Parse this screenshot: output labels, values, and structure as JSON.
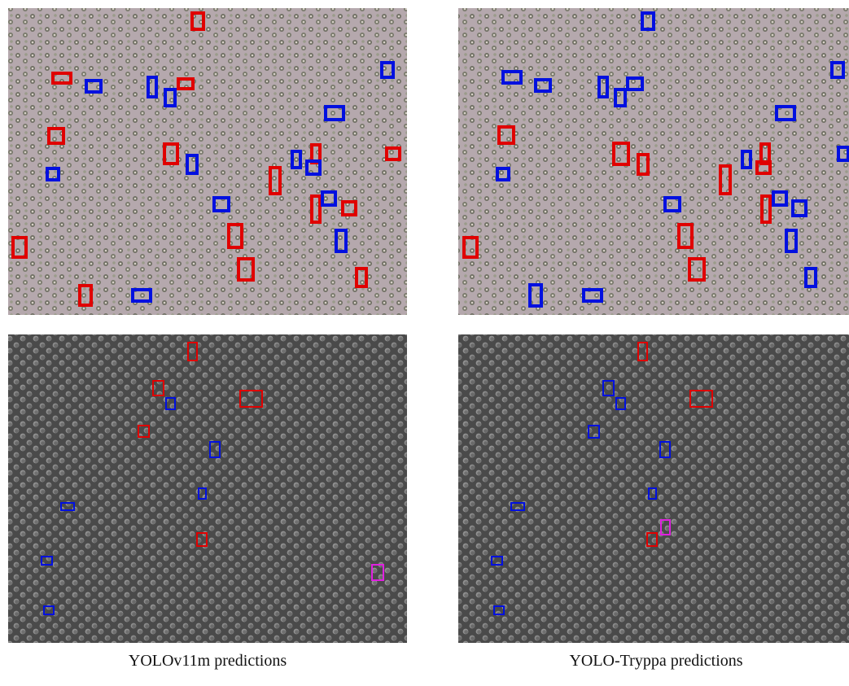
{
  "panels": [
    {
      "caption": "YOLOv11m predictions"
    },
    {
      "caption": "YOLO-Tryppa predictions"
    }
  ]
}
